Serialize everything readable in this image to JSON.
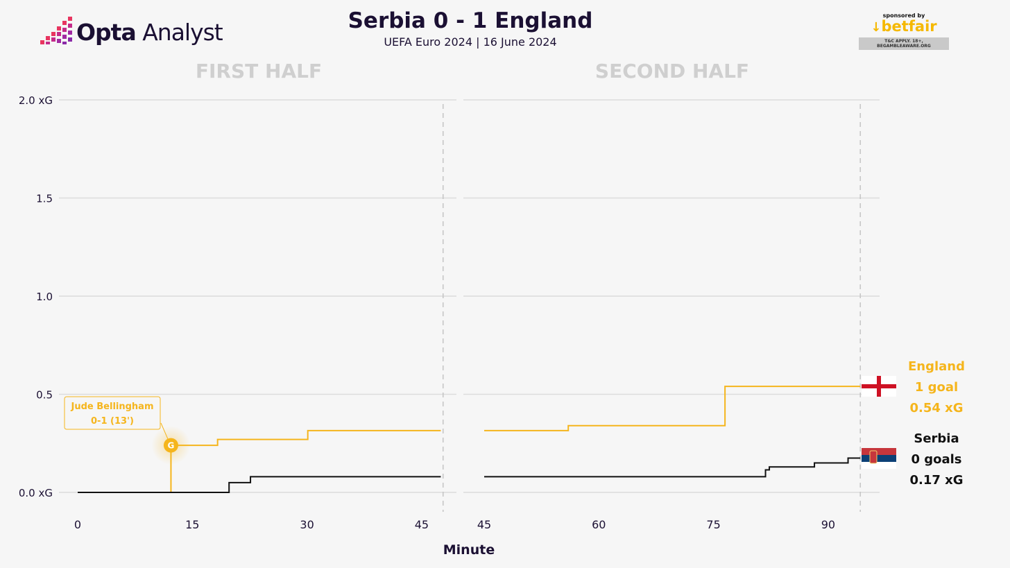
{
  "header": {
    "brand_bold": "Opta",
    "brand_light": " Analyst",
    "title": "Serbia 0 - 1 England",
    "subtitle": "UEFA Euro 2024 | 16 June 2024"
  },
  "sponsor": {
    "by": "sponsored by",
    "name": "betfair",
    "tc": "T&C APPLY. 18+, BEGAMBLEAWARE.ORG"
  },
  "colors": {
    "england": "#f5b51c",
    "serbia": "#111111",
    "grid": "#dcdcdc",
    "background": "#f6f6f6"
  },
  "chart_data": {
    "type": "line",
    "step": true,
    "xlabel": "Minute",
    "ylabel": "",
    "ylim": [
      0,
      2.0
    ],
    "yticks": [
      {
        "value": 0,
        "label": "0.0 xG"
      },
      {
        "value": 0.5,
        "label": "0.5"
      },
      {
        "value": 1.0,
        "label": "1.0"
      },
      {
        "value": 1.5,
        "label": "1.5"
      },
      {
        "value": 2.0,
        "label": "2.0 xG"
      }
    ],
    "grid": true,
    "panels": [
      {
        "title": "FIRST HALF",
        "xlim": [
          0,
          48
        ],
        "xticks": [
          0,
          15,
          30,
          45
        ],
        "end_marker": 47.8
      },
      {
        "title": "SECOND HALF",
        "xlim": [
          45,
          96
        ],
        "xticks": [
          45,
          60,
          75,
          90
        ],
        "end_marker": 94.2
      }
    ],
    "series": [
      {
        "name": "England",
        "color": "#f5b51c",
        "goals_text": "1 goal",
        "xg_text": "0.54 xG",
        "first_half": [
          [
            12.2,
            0.0
          ],
          [
            12.2,
            0.24
          ],
          [
            18.3,
            0.27
          ],
          [
            30.1,
            0.315
          ],
          [
            47.5,
            0.315
          ]
        ],
        "second_half": [
          [
            45,
            0.315
          ],
          [
            56,
            0.34
          ],
          [
            76.5,
            0.54
          ],
          [
            94.2,
            0.54
          ]
        ]
      },
      {
        "name": "Serbia",
        "color": "#111111",
        "goals_text": "0 goals",
        "xg_text": "0.17 xG",
        "first_half": [
          [
            0,
            0.0
          ],
          [
            19.8,
            0.05
          ],
          [
            22.6,
            0.08
          ],
          [
            47.5,
            0.08
          ]
        ],
        "second_half": [
          [
            45,
            0.08
          ],
          [
            81.8,
            0.115
          ],
          [
            82.3,
            0.13
          ],
          [
            88.2,
            0.15
          ],
          [
            92.6,
            0.175
          ],
          [
            94.2,
            0.175
          ]
        ]
      }
    ],
    "annotations": [
      {
        "team": "England",
        "minute": 12.2,
        "xg": 0.24,
        "marker": "G",
        "line1": "Jude Bellingham",
        "line2": "0-1 (13')"
      }
    ]
  }
}
